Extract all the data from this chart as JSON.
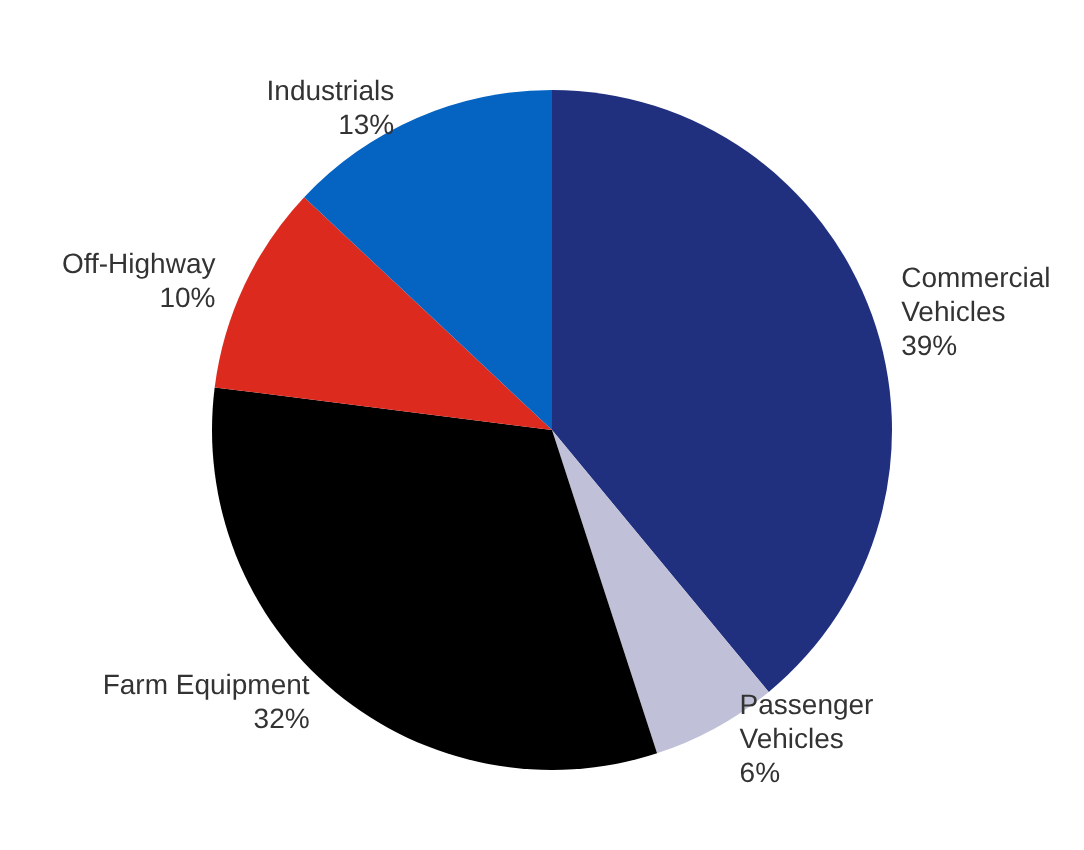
{
  "chart_data": {
    "type": "pie",
    "categories": [
      "Commercial Vehicles",
      "Passenger Vehicles",
      "Farm Equipment",
      "Off-Highway",
      "Industrials"
    ],
    "values": [
      39,
      6,
      32,
      10,
      13
    ],
    "colors": [
      "#20307f",
      "#c0c0d8",
      "#000000",
      "#dc2a1f",
      "#0563c1"
    ],
    "value_labels": [
      "39%",
      "6%",
      "32%",
      "10%",
      "13%"
    ],
    "legend": false
  }
}
